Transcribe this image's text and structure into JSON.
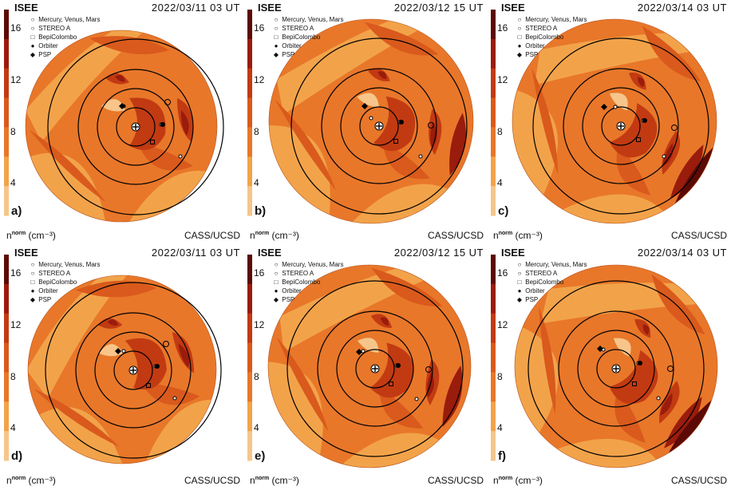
{
  "colors": {
    "c1": "#f7c58a",
    "c2": "#f2a34a",
    "c3": "#e8772a",
    "c4": "#d95a1c",
    "c5": "#c23a12",
    "c6": "#9a1c0c",
    "c7": "#5c0a05",
    "orbit": "#000000"
  },
  "common": {
    "source": "ISEE",
    "credit": "CASS/UCSD",
    "unit_base": "n",
    "unit_sup": "norm",
    "unit_rest": " (cm⁻³)",
    "legend": [
      {
        "icon": "small-circle-icon",
        "symbol": "○",
        "label": "Mercury, Venus, Mars"
      },
      {
        "icon": "circle-icon",
        "symbol": "○",
        "label": "STEREO A"
      },
      {
        "icon": "square-icon",
        "symbol": "□",
        "label": "BepiColombo"
      },
      {
        "icon": "filled-circle-icon",
        "symbol": "●",
        "label": "Orbiter"
      },
      {
        "icon": "diamond-icon",
        "symbol": "◆",
        "label": "PSP"
      }
    ],
    "colorbar_ticks": [
      "16",
      "12",
      "8",
      "4"
    ]
  },
  "panels": [
    {
      "label": "a)",
      "timestamp": "2022/03/11 03 UT"
    },
    {
      "label": "b)",
      "timestamp": "2022/03/12 15 UT"
    },
    {
      "label": "c)",
      "timestamp": "2022/03/14 03 UT"
    },
    {
      "label": "d)",
      "timestamp": "2022/03/11 03 UT"
    },
    {
      "label": "e)",
      "timestamp": "2022/03/12 15 UT"
    },
    {
      "label": "f)",
      "timestamp": "2022/03/14 03 UT"
    }
  ]
}
